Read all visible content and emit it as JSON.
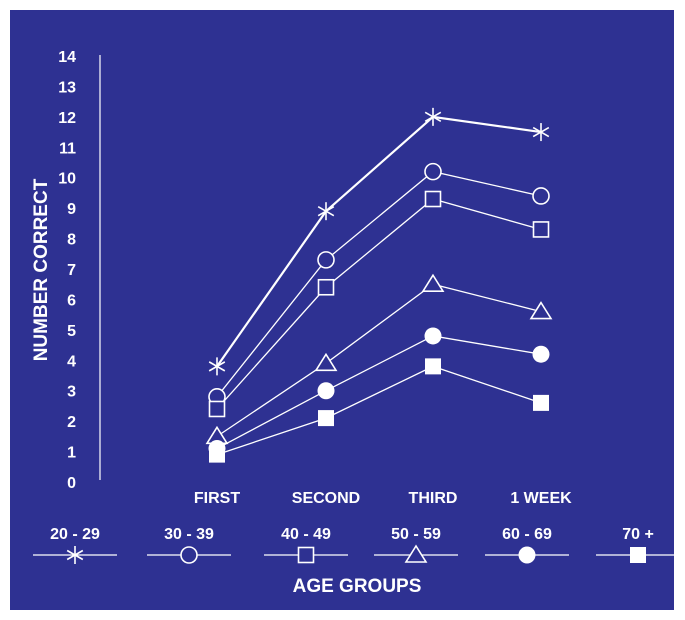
{
  "colors": {
    "background": "#2e3192",
    "foreground": "#ffffff",
    "page": "#ffffff"
  },
  "chart_data": {
    "type": "line",
    "ylabel": "NUMBER CORRECT",
    "xlabel": "AGE GROUPS",
    "categories": [
      "FIRST",
      "SECOND",
      "THIRD",
      "1 WEEK"
    ],
    "ylim": [
      0,
      14
    ],
    "yticks": [
      0,
      1,
      2,
      3,
      4,
      5,
      6,
      7,
      8,
      9,
      10,
      11,
      12,
      13,
      14
    ],
    "grid": false,
    "legend_position": "bottom",
    "series": [
      {
        "name": "20 - 29",
        "marker": "asterisk",
        "values": [
          3.8,
          8.9,
          12.0,
          11.5
        ]
      },
      {
        "name": "30 - 39",
        "marker": "circle-open",
        "values": [
          2.8,
          7.3,
          10.2,
          9.4
        ]
      },
      {
        "name": "40 - 49",
        "marker": "square-open",
        "values": [
          2.4,
          6.4,
          9.3,
          8.3
        ]
      },
      {
        "name": "50 - 59",
        "marker": "triangle-open",
        "values": [
          1.5,
          3.9,
          6.5,
          5.6
        ]
      },
      {
        "name": "60 - 69",
        "marker": "circle-filled",
        "values": [
          1.1,
          3.0,
          4.8,
          4.2
        ]
      },
      {
        "name": "70 +",
        "marker": "square-filled",
        "values": [
          0.9,
          2.1,
          3.8,
          2.6
        ]
      }
    ]
  }
}
